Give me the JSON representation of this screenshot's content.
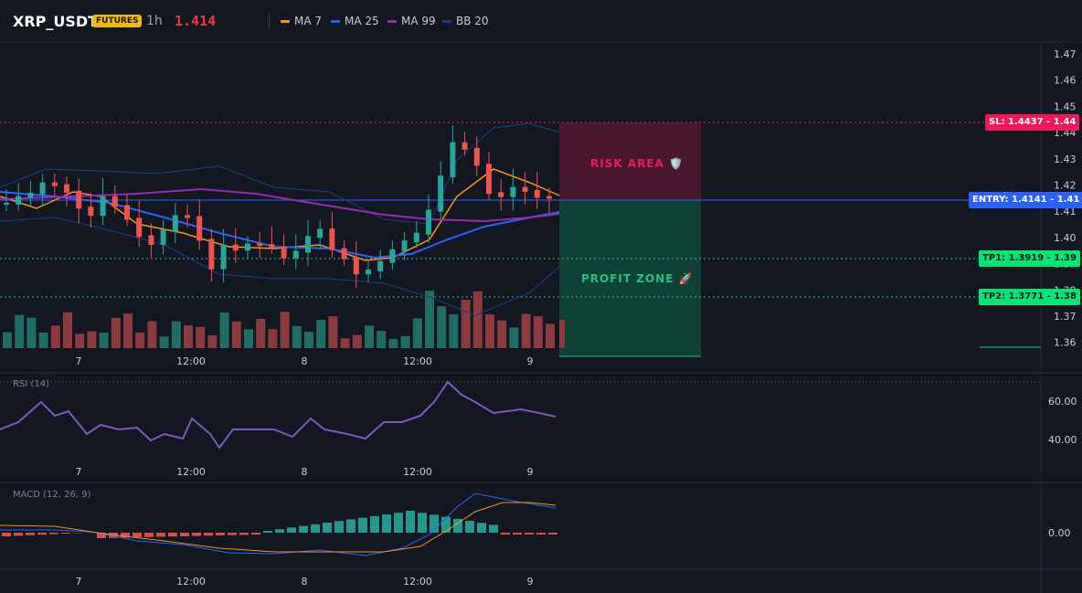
{
  "header": {
    "symbol": "XRP_USDT",
    "badge": "FUTURES",
    "timeframe": "1h",
    "last_price": "1.414",
    "legend": [
      {
        "label": "MA 7",
        "color": "#f7931a"
      },
      {
        "label": "MA 25",
        "color": "#2962ff"
      },
      {
        "label": "MA 99",
        "color": "#9c27b0"
      },
      {
        "label": "BB 20",
        "color": "#1e3a8a"
      }
    ]
  },
  "price_axis": [
    "1.47",
    "1.46",
    "1.45",
    "1.44",
    "1.43",
    "1.42",
    "1.41",
    "1.40",
    "1.39",
    "1.38",
    "1.37",
    "1.36"
  ],
  "time_axis": [
    "7",
    "12:00",
    "8",
    "12:00",
    "9"
  ],
  "levels": {
    "sl": {
      "label": "SL: 1.4437 - 1.44",
      "price": 1.4437,
      "color": "#f0185a"
    },
    "entry": {
      "label": "ENTRY: 1.4141 - 1.41",
      "price": 1.4141,
      "color": "#2962ff"
    },
    "tp1": {
      "label": "TP1: 1.3919 - 1.39",
      "price": 1.3919,
      "color": "#00c853"
    },
    "tp2": {
      "label": "TP2: 1.3771 - 1.38",
      "price": 1.3771,
      "color": "#00c853"
    }
  },
  "zones": {
    "risk": "RISK AREA 🛡️",
    "profit": "PROFIT ZONE 🚀"
  },
  "rsi": {
    "label": "RSI (14)",
    "axis": [
      "60.00",
      "40.00"
    ]
  },
  "macd": {
    "label": "MACD (12, 26, 9)",
    "axis": [
      "0.00"
    ]
  }
}
